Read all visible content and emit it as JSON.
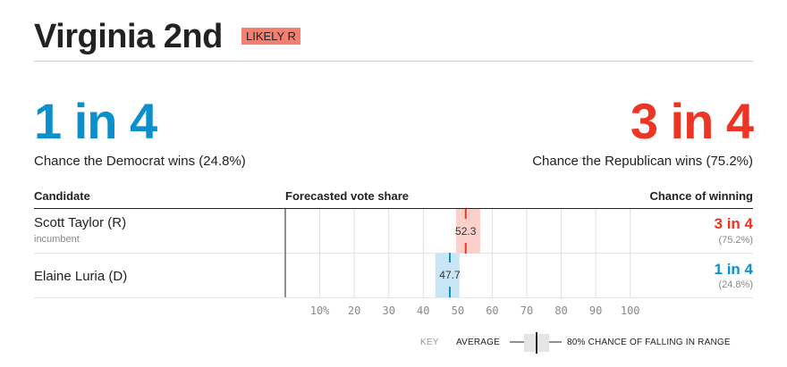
{
  "header": {
    "title": "Virginia 2nd",
    "rating": "LIKELY R"
  },
  "odds": {
    "dem": {
      "headline": "1 in 4",
      "text": "Chance the Democrat wins (24.8%)"
    },
    "rep": {
      "headline": "3 in 4",
      "text": "Chance the Republican wins (75.2%)"
    }
  },
  "table": {
    "headers": {
      "candidate": "Candidate",
      "vote_share": "Forecasted vote share",
      "chance": "Chance of winning"
    },
    "rows": [
      {
        "name": "Scott Taylor (R)",
        "sub": "incumbent",
        "win": "3 in 4",
        "winpct": "(75.2%)"
      },
      {
        "name": "Elaine Luria (D)",
        "sub": "",
        "win": "1 in 4",
        "winpct": "(24.8%)"
      }
    ]
  },
  "key": {
    "label": "KEY",
    "average": "AVERAGE",
    "range": "80% CHANCE OF FALLING IN RANGE"
  },
  "colors": {
    "dem": "#0b8fcd",
    "rep": "#ee3524",
    "dem_range": "#c9e6f6",
    "rep_range": "#fbd0cb",
    "badge": "#f47f6f"
  },
  "chart_data": {
    "type": "range",
    "x_ticks": [
      "10%",
      "20",
      "30",
      "40",
      "50",
      "60",
      "70",
      "80",
      "90",
      "100"
    ],
    "x_tick_values": [
      10,
      20,
      30,
      40,
      50,
      60,
      70,
      80,
      90,
      100
    ],
    "xlim": [
      0,
      100
    ],
    "series": [
      {
        "name": "Scott Taylor (R)",
        "average": 52.3,
        "range": [
          49.5,
          56.5
        ],
        "label": "52.3"
      },
      {
        "name": "Elaine Luria (D)",
        "average": 47.7,
        "range": [
          43.5,
          50.5
        ],
        "label": "47.7"
      }
    ]
  }
}
